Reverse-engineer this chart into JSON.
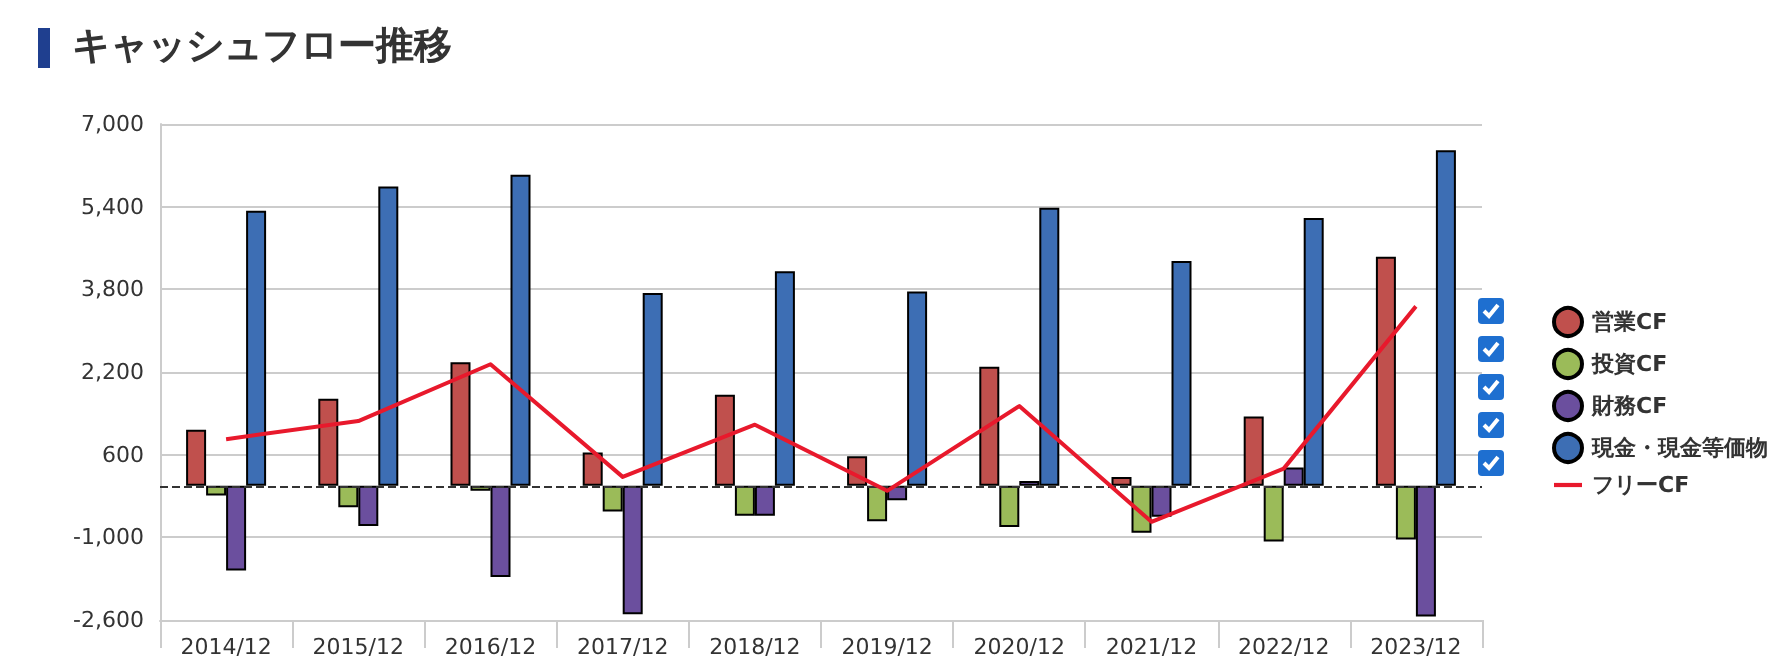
{
  "chart_data": {
    "type": "bar",
    "title": "キャッシュフロー推移",
    "categories": [
      "2014/12",
      "2015/12",
      "2016/12",
      "2017/12",
      "2018/12",
      "2019/12",
      "2020/12",
      "2021/12",
      "2022/12",
      "2023/12"
    ],
    "series": [
      {
        "name": "営業CF",
        "color": "#c0504d",
        "values": [
          1080,
          1680,
          2390,
          640,
          1760,
          570,
          2300,
          170,
          1340,
          4430
        ]
      },
      {
        "name": "投資CF",
        "color": "#9bbb59",
        "values": [
          -190,
          -420,
          -100,
          -500,
          -580,
          -690,
          -800,
          -910,
          -1080,
          -1040
        ]
      },
      {
        "name": "財務CF",
        "color": "#6b4f9e",
        "values": [
          -1640,
          -780,
          -1770,
          -2490,
          -580,
          -280,
          90,
          -600,
          350,
          -2530
        ]
      },
      {
        "name": "現金・現金等価物",
        "color": "#3d6eb4",
        "values": [
          5320,
          5790,
          6020,
          3730,
          4150,
          3760,
          5380,
          4350,
          5180,
          6490
        ]
      },
      {
        "name": "フリーCF",
        "type": "line",
        "color": "#e8192c",
        "values": [
          900,
          1250,
          2350,
          170,
          1180,
          -100,
          1540,
          -700,
          330,
          3470
        ]
      }
    ],
    "ylim": [
      -2600,
      7000
    ],
    "yticks": [
      {
        "value": -2600,
        "label": "-2,600"
      },
      {
        "value": -1000,
        "label": "-1,000"
      },
      600,
      {
        "value": 2200,
        "label": "2,200"
      },
      {
        "value": 3800,
        "label": "3,800"
      },
      {
        "value": 5400,
        "label": "5,400"
      },
      {
        "value": 7000,
        "label": "7,000"
      }
    ],
    "ref_lines": [
      {
        "axis": "y",
        "value": 0,
        "color": "#333333",
        "line_style": "dashed"
      }
    ],
    "grid": "y",
    "legend": "right"
  }
}
